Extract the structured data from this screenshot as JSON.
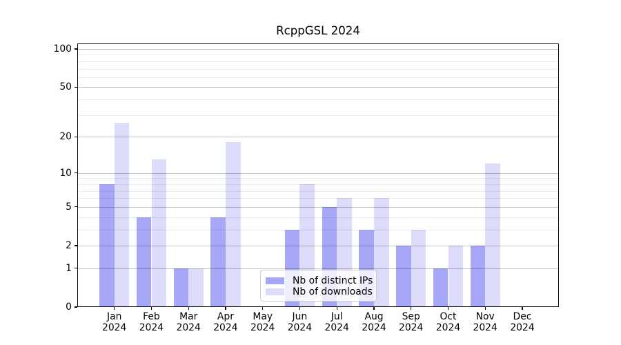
{
  "chart_data": {
    "type": "bar",
    "title": "RcppGSL 2024",
    "categories": [
      "Jan",
      "Feb",
      "Mar",
      "Apr",
      "May",
      "Jun",
      "Jul",
      "Aug",
      "Sep",
      "Oct",
      "Nov",
      "Dec"
    ],
    "category_sublabel": "2024",
    "series": [
      {
        "name": "Nb of distinct IPs",
        "color": "#a6a6f7",
        "values": [
          8,
          4,
          1,
          4,
          0,
          3,
          5,
          3,
          2,
          1,
          2,
          0
        ]
      },
      {
        "name": "Nb of downloads",
        "color": "#dcdcfa",
        "values": [
          26,
          13,
          1,
          18,
          0,
          8,
          6,
          6,
          3,
          2,
          12,
          0
        ]
      }
    ],
    "y_axis": {
      "scale": "log1p",
      "ticks": [
        0,
        1,
        2,
        5,
        10,
        20,
        50,
        100
      ],
      "minor_gridlines": [
        3,
        4,
        6,
        7,
        8,
        9,
        30,
        40,
        60,
        70,
        80,
        90
      ],
      "ylim": [
        0,
        111
      ]
    },
    "xlabel": "",
    "ylabel": "",
    "grid": true,
    "legend_position": "inside-bottom-center"
  }
}
